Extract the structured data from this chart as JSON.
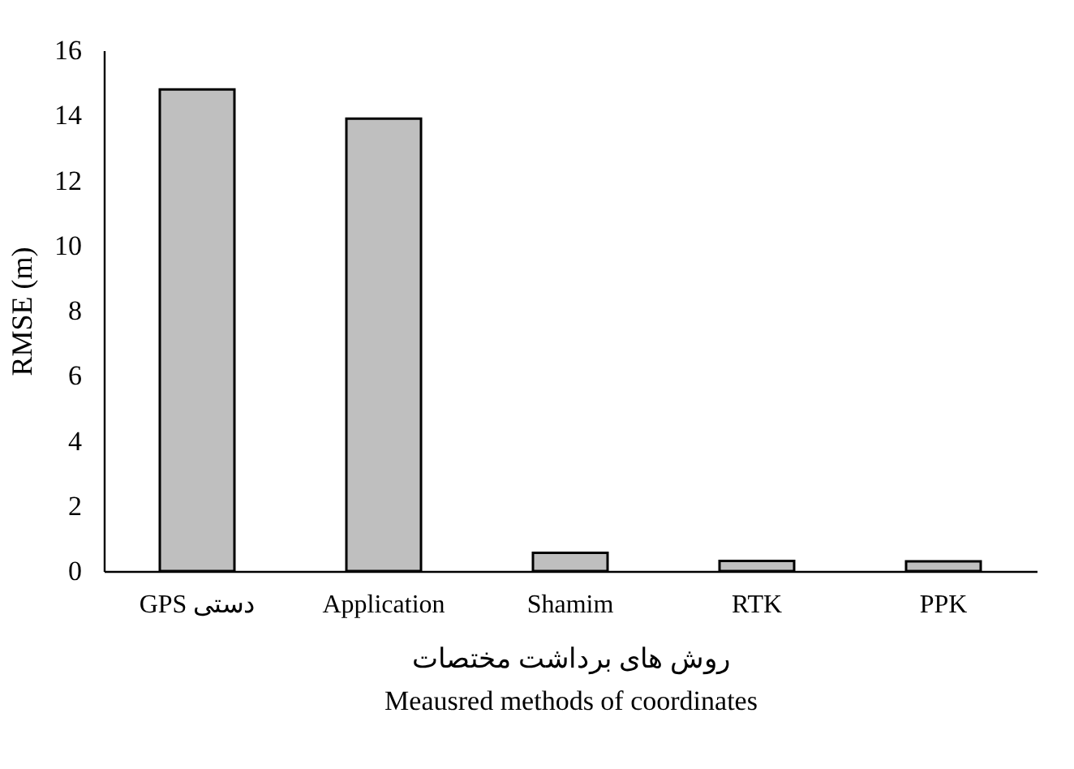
{
  "chart_data": {
    "type": "bar",
    "categories": [
      "GPS دستی",
      "Application",
      "Shamim",
      "RTK",
      "PPK"
    ],
    "values": [
      14.8,
      13.9,
      0.56,
      0.31,
      0.3
    ],
    "color": "#bfbfbf",
    "ylim": [
      0,
      16
    ],
    "yticks": [
      0,
      2,
      4,
      6,
      8,
      10,
      12,
      14,
      16
    ],
    "ylabel": "RMSE (m)",
    "xlabel": "روش های برداشت مختصات\nMeausred methods of coordinates",
    "grid": false
  }
}
